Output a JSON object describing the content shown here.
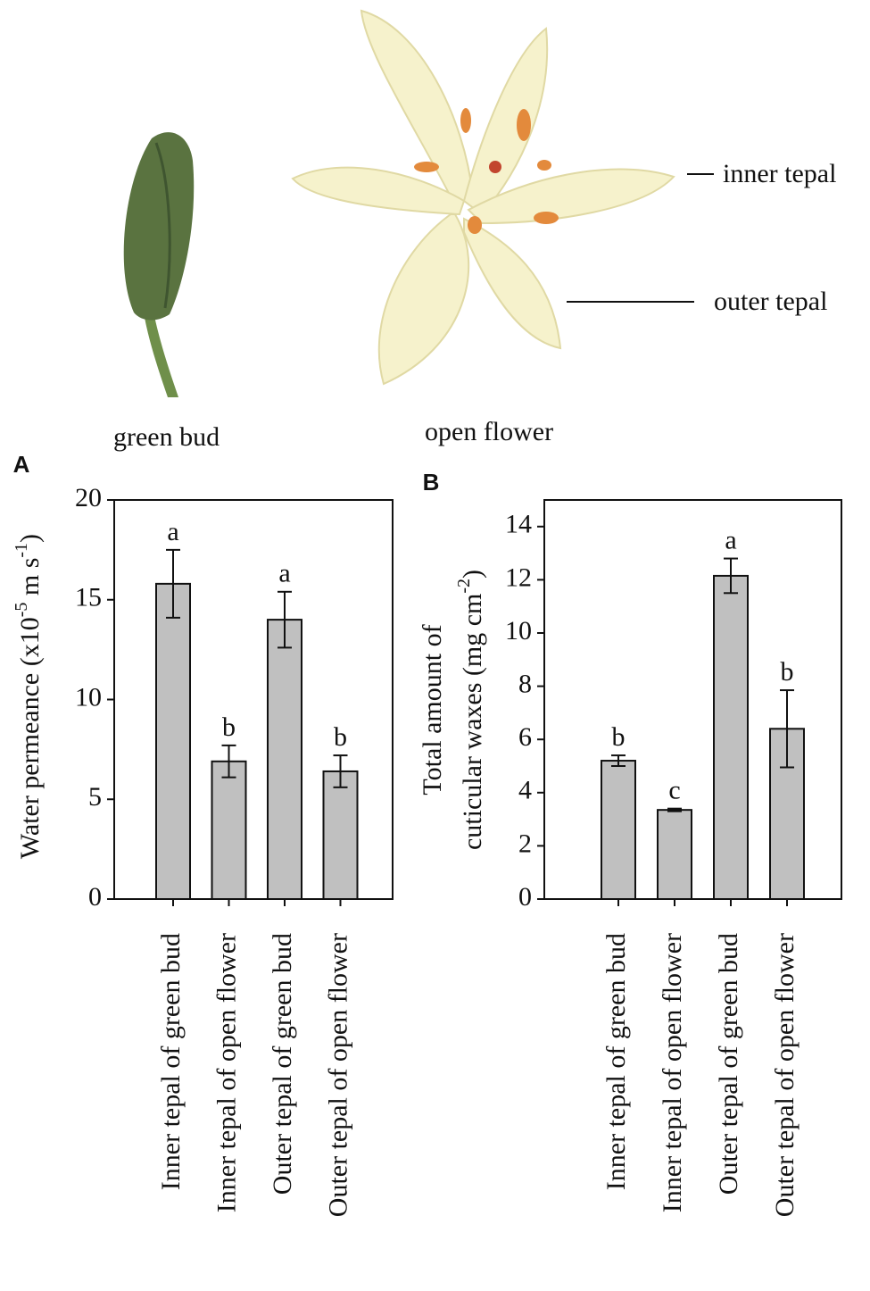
{
  "figure": {
    "photo_labels": {
      "bud": "green bud",
      "flower": "open flower",
      "inner": "inner tepal",
      "outer": "outer tepal"
    }
  },
  "chart_data": [
    {
      "type": "bar",
      "panel": "A",
      "ylabel": [
        [
          "Water permeance (x10",
          "-5",
          " m s",
          "-1",
          ")"
        ]
      ],
      "categories": [
        "Inner tepal of green bud",
        "Inner tepal of open flower",
        "Outer tepal of green bud",
        "Outer tepal of open flower"
      ],
      "values": [
        15.8,
        6.9,
        14.0,
        6.4
      ],
      "errors": [
        1.7,
        0.8,
        1.4,
        0.8
      ],
      "annotations": [
        "a",
        "b",
        "a",
        "b"
      ],
      "color": "#c0c0c0",
      "ylim": [
        0,
        20
      ],
      "yticks": [
        0,
        5,
        10,
        15,
        20
      ]
    },
    {
      "type": "bar",
      "panel": "B",
      "ylabel": [
        [
          "Total amount of"
        ],
        [
          "cuticular waxes (mg cm",
          "-2",
          ")"
        ]
      ],
      "categories": [
        "Inner tepal of green bud",
        "Inner tepal of open flower",
        "Outer tepal of green bud",
        "Outer tepal of open flower"
      ],
      "values": [
        5.2,
        3.35,
        12.15,
        6.4
      ],
      "errors": [
        0.2,
        0.05,
        0.65,
        1.45
      ],
      "annotations": [
        "b",
        "c",
        "a",
        "b"
      ],
      "color": "#c0c0c0",
      "ylim": [
        0,
        15
      ],
      "yticks": [
        0,
        2,
        4,
        6,
        8,
        10,
        12,
        14
      ]
    }
  ]
}
